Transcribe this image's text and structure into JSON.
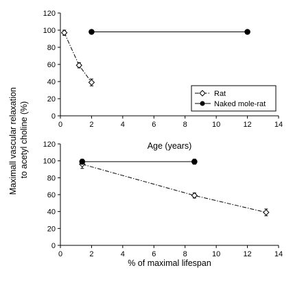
{
  "y_axis_title_lines": [
    "Maximall vascular relaxation",
    "to acetyl choline (%)"
  ],
  "chart_data": [
    {
      "type": "line",
      "xlabel": "Age (years)",
      "ylabel": "Maximall vascular relaxation to acetyl choline (%)",
      "xlim": [
        0,
        14
      ],
      "ylim": [
        0,
        120
      ],
      "x_ticks": [
        0,
        2,
        4,
        6,
        8,
        10,
        12,
        14
      ],
      "y_ticks": [
        0,
        20,
        40,
        60,
        80,
        100,
        120
      ],
      "grid": false,
      "legend": {
        "placement": "lower-right",
        "show": true
      },
      "series": [
        {
          "name": "Rat",
          "marker": "open-diamond",
          "line_style": "dash-dot",
          "color": "#000000",
          "points": [
            {
              "x": 0.25,
              "y": 97,
              "err": 3
            },
            {
              "x": 1.2,
              "y": 59,
              "err": 3
            },
            {
              "x": 2.0,
              "y": 39,
              "err": 4
            }
          ]
        },
        {
          "name": "Naked mole-rat",
          "marker": "filled-circle",
          "line_style": "solid",
          "color": "#000000",
          "points": [
            {
              "x": 2.0,
              "y": 98,
              "err": 2
            },
            {
              "x": 12.0,
              "y": 98,
              "err": 2
            }
          ]
        }
      ]
    },
    {
      "type": "line",
      "xlabel": "% of  maximal lifespan",
      "ylabel": "Maximall vascular relaxation to acetyl choline (%)",
      "xlim": [
        0,
        14
      ],
      "ylim": [
        0,
        120
      ],
      "x_ticks": [
        0,
        2,
        4,
        6,
        8,
        10,
        12,
        14
      ],
      "y_ticks": [
        0,
        20,
        40,
        60,
        80,
        100,
        120
      ],
      "grid": false,
      "legend": {
        "show": false
      },
      "series": [
        {
          "name": "Rat",
          "marker": "open-diamond",
          "line_style": "dash-dot",
          "color": "#000000",
          "points": [
            {
              "x": 1.4,
              "y": 96,
              "err": 5
            },
            {
              "x": 8.6,
              "y": 59,
              "err": 3
            },
            {
              "x": 13.2,
              "y": 39,
              "err": 4
            }
          ]
        },
        {
          "name": "Naked mole-rat",
          "marker": "filled-circle",
          "line_style": "solid",
          "color": "#000000",
          "points": [
            {
              "x": 1.4,
              "y": 99,
              "err": 3
            },
            {
              "x": 8.6,
              "y": 99,
              "err": 3
            }
          ]
        }
      ]
    }
  ]
}
